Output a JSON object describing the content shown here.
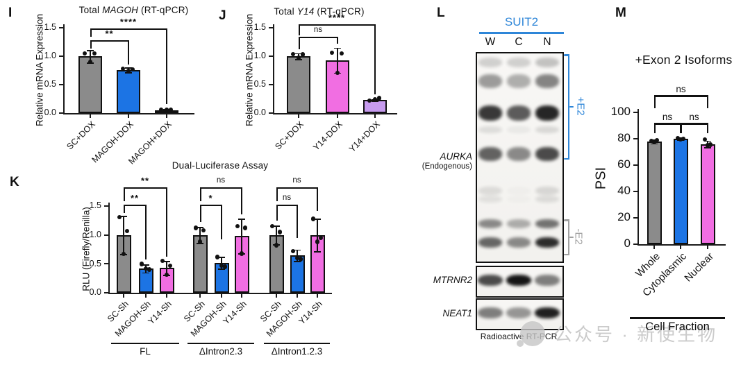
{
  "watermark": {
    "icon": "wechat-icon",
    "text": "公众号 · 新使生物",
    "color": "#cbcbcb"
  },
  "colors": {
    "gray": "#8b8b8b",
    "blue": "#1c74e4",
    "magenta": "#f16ee2",
    "light_purple": "#c79bef",
    "suit2_blue": "#2e86d8",
    "bracket_gray": "#a0a0a0",
    "axis": "#1a1a1a"
  },
  "panels": {
    "I": {
      "letter": "I",
      "title": {
        "pre": "Total ",
        "italic": "MAGOH",
        "post": " (RT-qPCR)"
      },
      "ylabel": "Relative mRNA Expression"
    },
    "J": {
      "letter": "J",
      "title": {
        "pre": "Total ",
        "italic": "Y14",
        "post": " (RT-qPCR)"
      },
      "ylabel": "Relative mRNA Expression"
    },
    "K": {
      "letter": "K",
      "title": {
        "pre": "Dual-Luciferase Assay",
        "italic": "",
        "post": ""
      },
      "ylabel": "RLU (Firefly/Renilla)"
    },
    "L": {
      "letter": "L",
      "cell_line": "SUIT2",
      "lanes": [
        "W",
        "C",
        "N"
      ],
      "gene": "AURKA",
      "gene_note": "(Endogenous)",
      "bracket_plus": "+E2",
      "bracket_minus": "-E2",
      "control1": "MTRNR2",
      "control2": "NEAT1",
      "caption": "Radioactive RT-PCR",
      "aurka_bands": [
        {
          "f": 0.044,
          "h": 14,
          "i": [
            0.16,
            0.16,
            0.22
          ]
        },
        {
          "f": 0.135,
          "h": 20,
          "i": [
            0.38,
            0.3,
            0.48
          ]
        },
        {
          "f": 0.29,
          "h": 22,
          "i": [
            0.8,
            0.65,
            0.88
          ]
        },
        {
          "f": 0.37,
          "h": 10,
          "i": [
            0.1,
            0.05,
            0.12
          ]
        },
        {
          "f": 0.49,
          "h": 20,
          "i": [
            0.62,
            0.45,
            0.72
          ]
        },
        {
          "f": 0.67,
          "h": 12,
          "i": [
            0.1,
            0.02,
            0.12
          ]
        },
        {
          "f": 0.71,
          "h": 10,
          "i": [
            0.08,
            0.02,
            0.1
          ]
        },
        {
          "f": 0.83,
          "h": 13,
          "i": [
            0.45,
            0.3,
            0.55
          ]
        },
        {
          "f": 0.92,
          "h": 15,
          "i": [
            0.6,
            0.45,
            0.85
          ]
        }
      ],
      "mtrnr2_bands": [
        0.72,
        0.95,
        0.5
      ],
      "neat1_bands": [
        0.5,
        0.4,
        0.9
      ]
    },
    "M": {
      "letter": "M",
      "title": {
        "pre": "+Exon 2 Isoforms",
        "italic": "",
        "post": ""
      },
      "ylabel": "PSI",
      "xaxis_label": "Cell Fraction"
    }
  },
  "chart_data": [
    {
      "id": "I",
      "type": "bar",
      "title": "Total MAGOH (RT-qPCR)",
      "ylabel": "Relative mRNA Expression",
      "ylim": [
        0,
        1.5
      ],
      "ytick_labels": [
        "0.0",
        "0.5",
        "1.0",
        "1.5"
      ],
      "yticks": [
        0,
        0.5,
        1.0,
        1.5
      ],
      "categories": [
        "SC+DOX",
        "MAGOH-DOX",
        "MAGOH+DOX"
      ],
      "values": [
        1.0,
        0.76,
        0.05
      ],
      "errors": [
        0.11,
        0.04,
        0.02
      ],
      "points": [
        [
          1.05,
          1.05,
          0.9
        ],
        [
          0.78,
          0.77,
          0.74
        ],
        [
          0.06,
          0.06,
          0.06
        ]
      ],
      "bar_colors": [
        "gray",
        "blue",
        "blue"
      ],
      "significance": [
        {
          "a": 0,
          "b": 1,
          "label": "**",
          "y": 1.28,
          "ya": 1.13,
          "yb": 0.85
        },
        {
          "a": 0,
          "b": 2,
          "label": "****",
          "y": 1.49,
          "ya": 1.34,
          "yb": 0.16
        }
      ]
    },
    {
      "id": "J",
      "type": "bar",
      "title": "Total Y14 (RT-qPCR)",
      "ylabel": "Relative mRNA Expression",
      "ylim": [
        0,
        1.5
      ],
      "ytick_labels": [
        "0.0",
        "0.5",
        "1.0",
        "1.5"
      ],
      "yticks": [
        0,
        0.5,
        1.0,
        1.5
      ],
      "categories": [
        "SC+DOX",
        "Y14-DOX",
        "Y14+DOX"
      ],
      "values": [
        1.0,
        0.93,
        0.23
      ],
      "errors": [
        0.05,
        0.22,
        0.02
      ],
      "points": [
        [
          1.04,
          1.03,
          0.97
        ],
        [
          1.06,
          1.05,
          0.71
        ],
        [
          0.22,
          0.26,
          0.24
        ]
      ],
      "bar_colors": [
        "gray",
        "magenta",
        "light_purple"
      ],
      "significance": [
        {
          "a": 0,
          "b": 1,
          "label": "ns",
          "y": 1.34,
          "ya": 1.12,
          "yb": 1.22
        },
        {
          "a": 0,
          "b": 2,
          "label": "****",
          "y": 1.56,
          "ya": 1.36,
          "yb": 0.33
        }
      ]
    },
    {
      "id": "K",
      "type": "grouped-bar",
      "title": "Dual-Luciferase Assay",
      "ylabel": "RLU (Firefly/Renilla)",
      "ylim": [
        0,
        1.5
      ],
      "ytick_labels": [
        "0.0",
        "0.5",
        "1.0",
        "1.5"
      ],
      "yticks": [
        0,
        0.5,
        1.0,
        1.5
      ],
      "categories": [
        "SC-Sh",
        "MAGOH-Sh",
        "Y14-Sh",
        "SC-Sh",
        "MAGOH-Sh",
        "Y14-Sh",
        "SC-Sh",
        "MAGOH-Sh",
        "Y14-Sh"
      ],
      "groups": [
        {
          "label": "FL",
          "from": 0,
          "to": 2
        },
        {
          "label": "ΔIntron2.3",
          "from": 3,
          "to": 5
        },
        {
          "label": "ΔIntron1.2.3",
          "from": 6,
          "to": 8
        }
      ],
      "values": [
        1.0,
        0.42,
        0.43,
        1.0,
        0.52,
        0.98,
        1.0,
        0.65,
        1.0
      ],
      "errors": [
        0.33,
        0.07,
        0.12,
        0.14,
        0.1,
        0.3,
        0.16,
        0.1,
        0.28
      ],
      "points": [
        [
          1.31,
          1.07,
          0.67
        ],
        [
          0.5,
          0.4,
          0.42
        ],
        [
          0.55,
          0.47,
          0.31
        ],
        [
          1.12,
          1.08,
          0.88
        ],
        [
          0.62,
          0.45,
          0.47
        ],
        [
          1.15,
          1.12,
          0.68
        ],
        [
          1.15,
          1.05,
          0.82
        ],
        [
          0.72,
          0.58,
          0.6
        ],
        [
          1.28,
          0.95,
          0.88
        ]
      ],
      "bar_colors": [
        "gray",
        "blue",
        "magenta",
        "gray",
        "blue",
        "magenta",
        "gray",
        "blue",
        "magenta"
      ],
      "significance": [
        {
          "a": 0,
          "b": 1,
          "label": "**",
          "y": 1.52,
          "ya": 1.38,
          "yb": 0.58
        },
        {
          "a": 0,
          "b": 2,
          "label": "**",
          "y": 1.82,
          "ya": 1.58,
          "yb": 0.62
        },
        {
          "a": 3,
          "b": 4,
          "label": "*",
          "y": 1.52,
          "ya": 1.22,
          "yb": 0.92
        },
        {
          "a": 3,
          "b": 5,
          "label": "ns",
          "y": 1.82,
          "ya": 1.58,
          "yb": 1.35
        },
        {
          "a": 6,
          "b": 7,
          "label": "ns",
          "y": 1.52,
          "ya": 1.25,
          "yb": 0.95
        },
        {
          "a": 6,
          "b": 8,
          "label": "ns",
          "y": 1.82,
          "ya": 1.58,
          "yb": 1.42
        }
      ]
    },
    {
      "id": "M",
      "type": "bar",
      "title": "+Exon 2 Isoforms",
      "ylabel": "PSI",
      "xaxis_label": "Cell Fraction",
      "ylim": [
        0,
        100
      ],
      "ytick_labels": [
        "0",
        "20",
        "40",
        "60",
        "80",
        "100"
      ],
      "yticks": [
        0,
        20,
        40,
        60,
        80,
        100
      ],
      "categories": [
        "Whole",
        "Cytoplasmic",
        "Nuclear"
      ],
      "values": [
        78,
        80,
        76
      ],
      "errors": [
        1.5,
        1.0,
        2.5
      ],
      "points": [
        [
          78.5,
          79,
          77.5
        ],
        [
          80.5,
          80,
          79.5
        ],
        [
          79.5,
          75.5,
          75
        ]
      ],
      "bar_colors": [
        "gray",
        "blue",
        "magenta"
      ],
      "significance": [
        {
          "a": 0,
          "b": 1,
          "label": "ns",
          "y": 92,
          "ya": 84,
          "yb": 84
        },
        {
          "a": 1,
          "b": 2,
          "label": "ns",
          "y": 92,
          "ya": 84,
          "yb": 84
        },
        {
          "a": 0,
          "b": 2,
          "label": "ns",
          "y": 113,
          "ya": 103,
          "yb": 103
        }
      ]
    }
  ],
  "gel_description": {
    "cell_line": "SUIT2",
    "lanes": [
      "W",
      "C",
      "N"
    ],
    "assay": "Radioactive RT-PCR",
    "targets": [
      "AURKA (Endogenous)",
      "MTRNR2",
      "NEAT1"
    ],
    "isoform_brackets": [
      "+E2",
      "-E2"
    ]
  }
}
